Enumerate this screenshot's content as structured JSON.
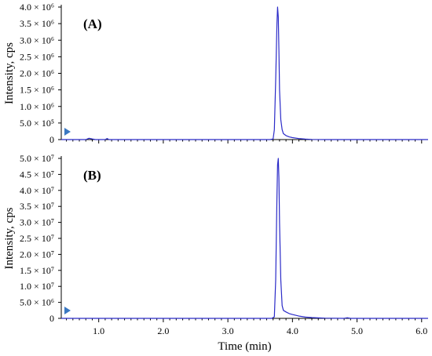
{
  "chart_data": [
    {
      "type": "line",
      "panel_label": "(A)",
      "ylabel": "Intensity, cps",
      "xlabel": "",
      "xlim": [
        0.42,
        6.1
      ],
      "ylim": [
        0,
        4000000
      ],
      "x_ticks": [
        1.0,
        2.0,
        3.0,
        4.0,
        5.0,
        6.0
      ],
      "x_tick_labels": [
        "1.0",
        "2.0",
        "3.0",
        "4.0",
        "5.0",
        "6.0"
      ],
      "y_ticks": [
        0,
        500000,
        1000000,
        1500000,
        2000000,
        2500000,
        3000000,
        3500000,
        4000000
      ],
      "y_tick_labels": [
        "0",
        "5.0 × 10⁵",
        "1.0 × 10⁶",
        "1.5 × 10⁶",
        "2.0 × 10⁶",
        "2.5 × 10⁶",
        "3.0 × 10⁶",
        "3.5 × 10⁶",
        "4.0 × 10⁶"
      ],
      "line_color": "#2b2bc8",
      "marker_color": "#3a78c2",
      "series": [
        {
          "x": [
            0.42,
            0.8,
            0.85,
            0.9,
            0.95,
            1.1,
            1.13,
            1.16,
            1.5,
            2.0,
            2.5,
            3.0,
            3.5,
            3.65,
            3.7,
            3.72,
            3.74,
            3.76,
            3.77,
            3.78,
            3.79,
            3.8,
            3.82,
            3.84,
            3.86,
            3.9,
            3.95,
            4.0,
            4.1,
            4.2,
            4.3,
            4.5,
            5.0,
            5.5,
            6.1
          ],
          "values": [
            0,
            0,
            40000,
            20000,
            0,
            0,
            30000,
            0,
            0,
            0,
            0,
            0,
            0,
            0,
            20000,
            300000,
            1800000,
            3500000,
            4000000,
            3700000,
            2700000,
            1500000,
            600000,
            300000,
            180000,
            120000,
            80000,
            60000,
            30000,
            15000,
            5000,
            0,
            0,
            0,
            0
          ]
        }
      ]
    },
    {
      "type": "line",
      "panel_label": "(B)",
      "ylabel": "Intensity, cps",
      "xlabel": "Time (min)",
      "xlim": [
        0.42,
        6.1
      ],
      "ylim": [
        0,
        50000000
      ],
      "x_ticks": [
        1.0,
        2.0,
        3.0,
        4.0,
        5.0,
        6.0
      ],
      "x_tick_labels": [
        "1.0",
        "2.0",
        "3.0",
        "4.0",
        "5.0",
        "6.0"
      ],
      "y_ticks": [
        0,
        5000000,
        10000000,
        15000000,
        20000000,
        25000000,
        30000000,
        35000000,
        40000000,
        45000000,
        50000000
      ],
      "y_tick_labels": [
        "0",
        "5.0 × 10⁶",
        "1.0 × 10⁷",
        "1.5 × 10⁷",
        "2.0 × 10⁷",
        "2.5 × 10⁷",
        "3.0 × 10⁷",
        "3.5 × 10⁷",
        "4.0 × 10⁷",
        "4.5 × 10⁷",
        "5.0 × 10⁷"
      ],
      "line_color": "#2b2bc8",
      "marker_color": "#3a78c2",
      "series": [
        {
          "x": [
            0.42,
            1.0,
            2.0,
            3.0,
            3.5,
            3.68,
            3.72,
            3.74,
            3.76,
            3.77,
            3.78,
            3.79,
            3.8,
            3.82,
            3.84,
            3.86,
            3.9,
            3.95,
            4.0,
            4.1,
            4.2,
            4.3,
            4.4,
            4.5,
            4.8,
            4.85,
            4.9,
            5.0,
            5.5,
            6.1
          ],
          "values": [
            0,
            0,
            0,
            0,
            0,
            0,
            500000,
            12000000,
            38000000,
            48000000,
            50000000,
            44000000,
            30000000,
            12000000,
            4000000,
            2500000,
            2000000,
            1500000,
            1200000,
            700000,
            400000,
            250000,
            150000,
            80000,
            0,
            200000,
            0,
            0,
            0,
            0
          ]
        }
      ]
    }
  ]
}
